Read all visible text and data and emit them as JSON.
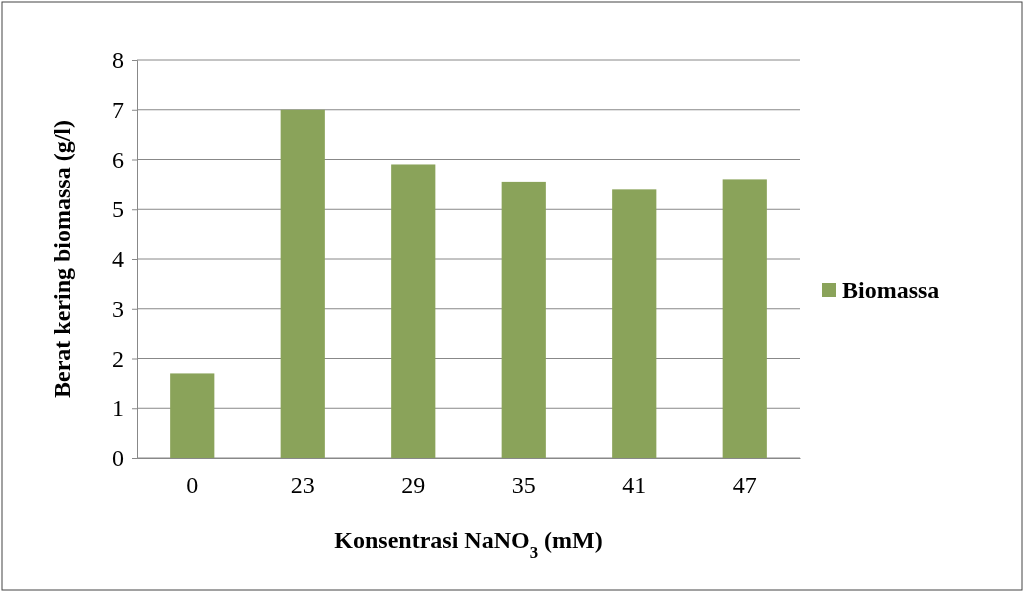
{
  "chart_data": {
    "type": "bar",
    "xlabel": "Konsentrasi NaNO$_{3}$ (mM)",
    "ylabel": "Berat kering biomassa  (g/l)",
    "categories": [
      "0",
      "23",
      "29",
      "35",
      "41",
      "47"
    ],
    "series": [
      {
        "name": "Biomassa",
        "color": "#8aa35a",
        "values": [
          1.7,
          7.0,
          5.9,
          5.55,
          5.4,
          5.6
        ]
      }
    ],
    "ylim": [
      0,
      8
    ],
    "yticks": [
      0,
      1,
      2,
      3,
      4,
      5,
      6,
      7,
      8
    ],
    "grid": "y",
    "legend": "right"
  }
}
